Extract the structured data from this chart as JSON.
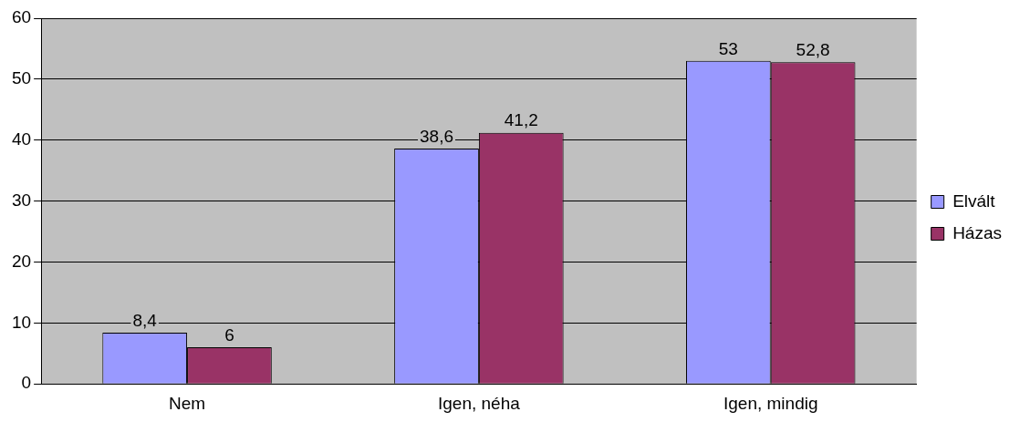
{
  "chart_data": {
    "type": "bar",
    "categories": [
      "Nem",
      "Igen, néha",
      "Igen, mindig"
    ],
    "series": [
      {
        "name": "Elvált",
        "color": "#9999ff",
        "values": [
          8.4,
          38.6,
          53
        ],
        "value_labels": [
          "8,4",
          "38,6",
          "53"
        ]
      },
      {
        "name": "Házas",
        "color": "#993366",
        "values": [
          6,
          41.2,
          52.8
        ],
        "value_labels": [
          "6",
          "41,2",
          "52,8"
        ]
      }
    ],
    "ylim": [
      0,
      60
    ],
    "yticks": [
      0,
      10,
      20,
      30,
      40,
      50,
      60
    ],
    "grid": "y",
    "legend": "right"
  }
}
